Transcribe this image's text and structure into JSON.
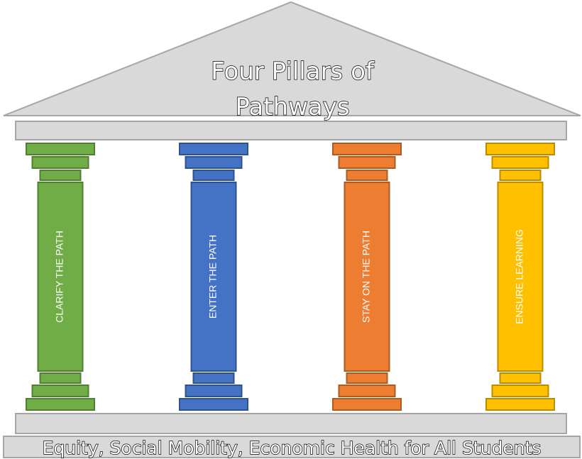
{
  "title_lines": [
    "Four Pillars of",
    "Pathways"
  ],
  "pillars": [
    {
      "label": "CLARIFY THE PATH",
      "color": "#70ad47",
      "stroke": "#507e32"
    },
    {
      "label": "ENTER THE PATH",
      "color": "#4472c4",
      "stroke": "#2f528f"
    },
    {
      "label": "STAY ON THE PATH",
      "color": "#ed7d31",
      "stroke": "#ae5a21"
    },
    {
      "label": "ENSURE LEARNING",
      "color": "#ffc000",
      "stroke": "#bc8c00"
    }
  ],
  "foundation": "Equity, Social Mobility, Economic Health for All Students"
}
